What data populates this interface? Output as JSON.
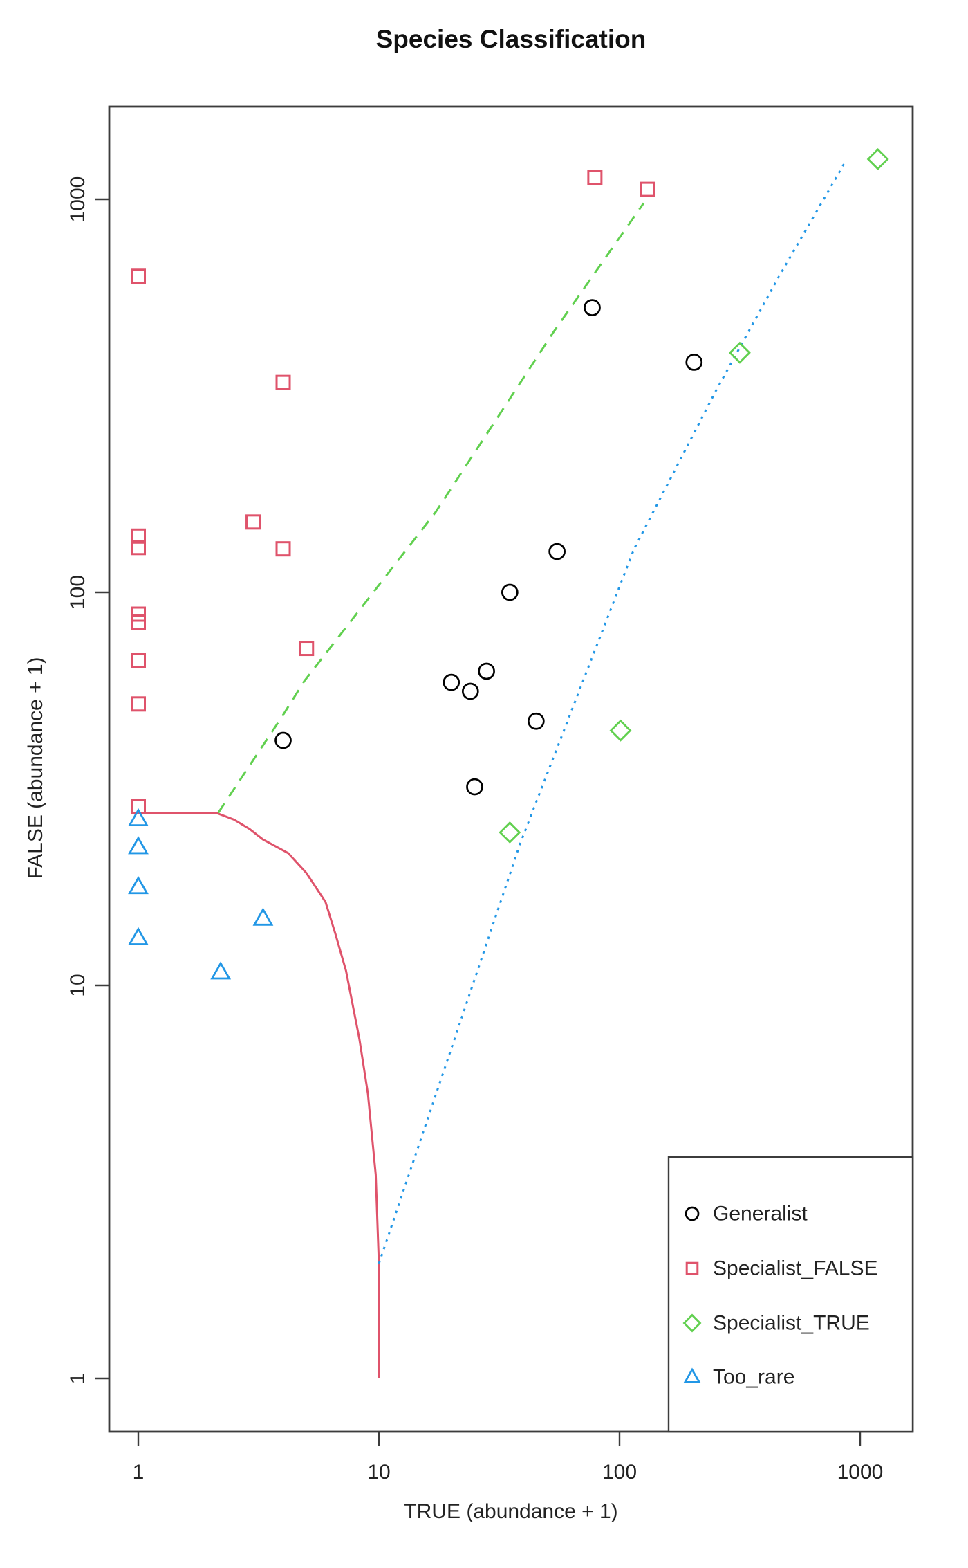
{
  "title": "Species Classification",
  "axes": {
    "x": {
      "label": "TRUE (abundance + 1)",
      "scale": "log",
      "ticks": [
        1,
        10,
        100,
        1000
      ]
    },
    "y": {
      "label": "FALSE (abundance + 1)",
      "scale": "log",
      "ticks": [
        1,
        10,
        100,
        1000
      ]
    }
  },
  "colors": {
    "generalist": "#000000",
    "specialist_false": "#DF536B",
    "specialist_true": "#61D04F",
    "too_rare": "#2297E6",
    "frame": "#3c3c3c",
    "text": "#222222"
  },
  "legend": {
    "items": [
      {
        "label": "Generalist",
        "marker": "circle",
        "color": "#000000"
      },
      {
        "label": "Specialist_FALSE",
        "marker": "square",
        "color": "#DF536B"
      },
      {
        "label": "Specialist_TRUE",
        "marker": "diamond",
        "color": "#61D04F"
      },
      {
        "label": "Too_rare",
        "marker": "triangle",
        "color": "#2297E6"
      }
    ]
  },
  "chart_data": {
    "type": "scatter",
    "title": "Species Classification",
    "xlabel": "TRUE (abundance + 1)",
    "ylabel": "FALSE (abundance + 1)",
    "xscale": "log",
    "yscale": "log",
    "xlim": [
      1,
      1250
    ],
    "ylim": [
      1,
      1570
    ],
    "grid": false,
    "legend_position": "bottomright",
    "series": [
      {
        "name": "Generalist",
        "marker": "circle",
        "color": "#000000",
        "points": [
          [
            4,
            42
          ],
          [
            20,
            59
          ],
          [
            24,
            56
          ],
          [
            25,
            32
          ],
          [
            28,
            63
          ],
          [
            35,
            100
          ],
          [
            45,
            47
          ],
          [
            55,
            127
          ],
          [
            77,
            530
          ],
          [
            204,
            385
          ]
        ]
      },
      {
        "name": "Specialist_FALSE",
        "marker": "square",
        "color": "#DF536B",
        "points": [
          [
            1,
            637
          ],
          [
            1,
            139
          ],
          [
            1,
            130
          ],
          [
            1,
            88
          ],
          [
            1,
            84
          ],
          [
            1,
            67
          ],
          [
            1,
            52
          ],
          [
            1,
            28.5
          ],
          [
            3,
            151
          ],
          [
            4,
            342
          ],
          [
            4,
            129
          ],
          [
            5,
            72
          ],
          [
            79,
            1135
          ],
          [
            131,
            1060
          ]
        ]
      },
      {
        "name": "Specialist_TRUE",
        "marker": "diamond",
        "color": "#61D04F",
        "points": [
          [
            35,
            24.5
          ],
          [
            101,
            44.5
          ],
          [
            316,
            407
          ],
          [
            1185,
            1265
          ]
        ]
      },
      {
        "name": "Too_rare",
        "marker": "triangle",
        "color": "#2297E6",
        "points": [
          [
            1,
            26.5
          ],
          [
            1,
            22.5
          ],
          [
            1,
            17.8
          ],
          [
            1,
            13.2
          ],
          [
            2.2,
            10.8
          ],
          [
            3.3,
            14.8
          ]
        ]
      }
    ],
    "boundary_lines": [
      {
        "name": "too-rare-boundary",
        "style": "solid",
        "color": "#DF536B",
        "points": [
          [
            1,
            27.5
          ],
          [
            2.1,
            27.5
          ],
          [
            2.5,
            26.4
          ],
          [
            2.9,
            25
          ],
          [
            3.3,
            23.5
          ],
          [
            4.2,
            21.7
          ],
          [
            5,
            19.3
          ],
          [
            6,
            16.3
          ],
          [
            6.6,
            13.5
          ],
          [
            7.3,
            10.9
          ],
          [
            8.3,
            7.3
          ],
          [
            9,
            5.3
          ],
          [
            9.7,
            3.3
          ],
          [
            10,
            1.95
          ],
          [
            10,
            1
          ]
        ]
      },
      {
        "name": "specialist-true-boundary",
        "style": "dashed",
        "color": "#61D04F",
        "points": [
          [
            2.15,
            27.5
          ],
          [
            3.96,
            48.3
          ],
          [
            4.9,
            59.5
          ],
          [
            17.2,
            160
          ],
          [
            53,
            458
          ],
          [
            126,
            978
          ]
        ]
      },
      {
        "name": "specialist-false-boundary",
        "style": "dotted",
        "color": "#2297E6",
        "points": [
          [
            10,
            1.96
          ],
          [
            17.2,
            5.25
          ],
          [
            38.6,
            22.9
          ],
          [
            115,
            129
          ],
          [
            251,
            325
          ],
          [
            455,
            629
          ],
          [
            872,
            1253
          ]
        ]
      }
    ]
  }
}
